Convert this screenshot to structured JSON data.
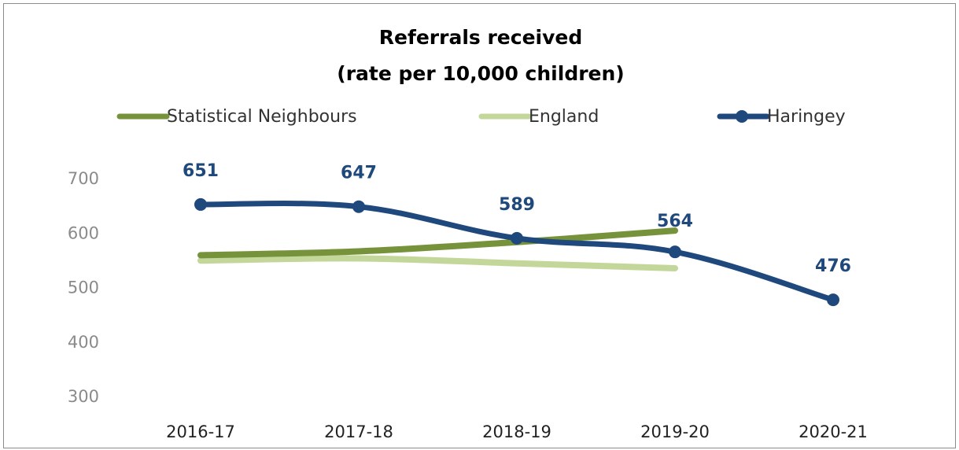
{
  "chart_data": {
    "type": "line",
    "title": "Referrals received",
    "subtitle": "(rate per 10,000 children)",
    "xlabel": "",
    "ylabel": "",
    "categories": [
      "2016-17",
      "2017-18",
      "2018-19",
      "2019-20",
      "2020-21"
    ],
    "yticks": [
      "700",
      "600",
      "500",
      "400",
      "300"
    ],
    "ylim": [
      300,
      700
    ],
    "grid": false,
    "legend_position": "top",
    "series": [
      {
        "name": "Statistical Neighbours",
        "color": "#76933c",
        "markers": false,
        "values": [
          558,
          565,
          582,
          603,
          null
        ]
      },
      {
        "name": "England",
        "color": "#c4d79b",
        "markers": false,
        "values": [
          548,
          552,
          543,
          534,
          null
        ]
      },
      {
        "name": "Haringey",
        "color": "#1f497d",
        "markers": true,
        "values": [
          651,
          647,
          589,
          564,
          476
        ],
        "data_labels": [
          "651",
          "647",
          "589",
          "564",
          "476"
        ]
      }
    ]
  }
}
